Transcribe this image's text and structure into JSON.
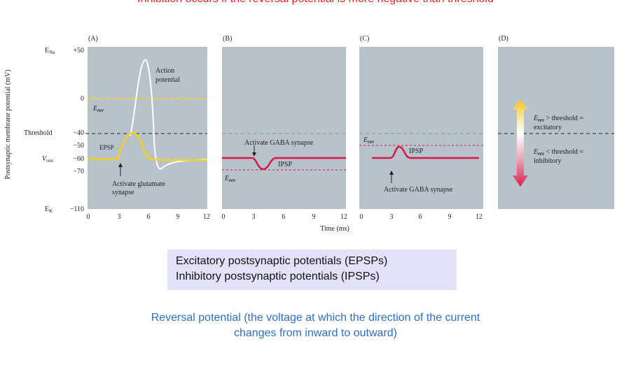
{
  "header": {
    "title": "Inhibition occurs if the reversal potential is more negative than threshold"
  },
  "figure": {
    "ylabel": "Postsynaptic membrane potential (mV)",
    "xlabel": "Time (ms)",
    "panels": [
      "(A)",
      "(B)",
      "(C)",
      "(D)"
    ],
    "y_labels": {
      "ena": "E",
      "ena_sub": "Na",
      "ena_val": "+50",
      "zero": "0",
      "threshold": "Threshold",
      "t40": "40",
      "t50": "50",
      "vrest": "V",
      "vrest_sub": "rest",
      "t60": "60",
      "t70": "70",
      "ek": "E",
      "ek_sub": "K",
      "ek_val": "110"
    },
    "minus": "−",
    "ticks_a": [
      "0",
      "3",
      "6",
      "9",
      "12"
    ],
    "ticks_b": [
      "0",
      "3",
      "6",
      "9",
      "12"
    ],
    "ticks_c": [
      "0",
      "3",
      "6",
      "9",
      "12"
    ],
    "panel_a": {
      "action_potential_1": "Action",
      "action_potential_2": "potential",
      "erev": "E",
      "erev_sub": "rev",
      "epsp": "EPSP",
      "activate_1": "Activate glutamate",
      "activate_2": "synapse"
    },
    "panel_b": {
      "activate": "Activate GABA synapse",
      "ipsp": "IPSP",
      "erev": "E",
      "erev_sub": "rev"
    },
    "panel_c": {
      "erev": "E",
      "erev_sub": "rev",
      "ipsp": "IPSP",
      "activate": "Activate GABA synapse"
    },
    "panel_d": {
      "exc_e": "E",
      "exc_sub": "rev",
      "exc_rest": " > threshold =",
      "exc_word": "excitatory",
      "inh_e": "E",
      "inh_sub": "rev",
      "inh_rest": " < threshold =",
      "inh_word": "inhibitory"
    },
    "colors": {
      "panel_bg": "#b8c2ca",
      "epsp": "#f4d21a",
      "ipsp": "#d8174a",
      "action_potential": "#ffffff",
      "arrow_up": "#f6c313",
      "arrow_down": "#d81f4e"
    }
  },
  "box": {
    "line1": "Excitatory postsynaptic potentials (EPSPs)",
    "line2": "Inhibitory postsynaptic potentials (IPSPs)"
  },
  "reversal_note": {
    "line1": "Reversal potential (the voltage at which the direction of the current",
    "line2": "changes from inward to outward)"
  }
}
